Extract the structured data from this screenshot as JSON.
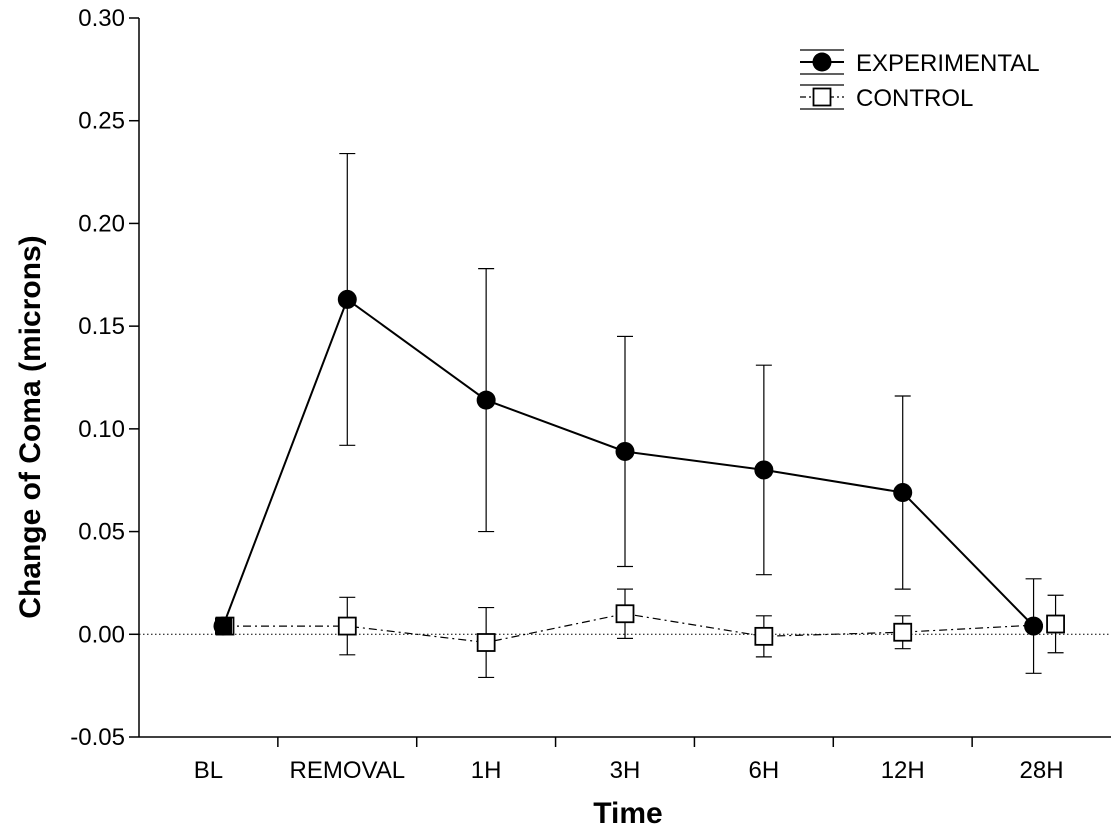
{
  "chart_data": {
    "type": "line",
    "title": "",
    "xlabel": "Time",
    "ylabel": "Change of Coma (microns)",
    "categories": [
      "BL",
      "REMOVAL",
      "1H",
      "3H",
      "6H",
      "12H",
      "28H"
    ],
    "ylim": [
      -0.05,
      0.3
    ],
    "yticks": [
      "-0.05",
      "0.00",
      "0.05",
      "0.10",
      "0.15",
      "0.20",
      "0.25",
      "0.30"
    ],
    "reference_line_y": 0,
    "legend_position": "top-right",
    "grid": false,
    "series": [
      {
        "name": "EXPERIMENTAL",
        "marker": "filled-circle",
        "line_style": "solid",
        "values": [
          0.004,
          0.163,
          0.114,
          0.089,
          0.08,
          0.069,
          0.004
        ],
        "error": [
          0.0,
          0.071,
          0.064,
          0.056,
          0.051,
          0.047,
          0.023
        ]
      },
      {
        "name": "CONTROL",
        "marker": "open-square",
        "line_style": "dash-dot",
        "values": [
          0.004,
          0.004,
          -0.004,
          0.01,
          -0.001,
          0.001,
          0.005
        ],
        "error": [
          0.0,
          0.014,
          0.017,
          0.012,
          0.01,
          0.008,
          0.014
        ]
      }
    ]
  }
}
